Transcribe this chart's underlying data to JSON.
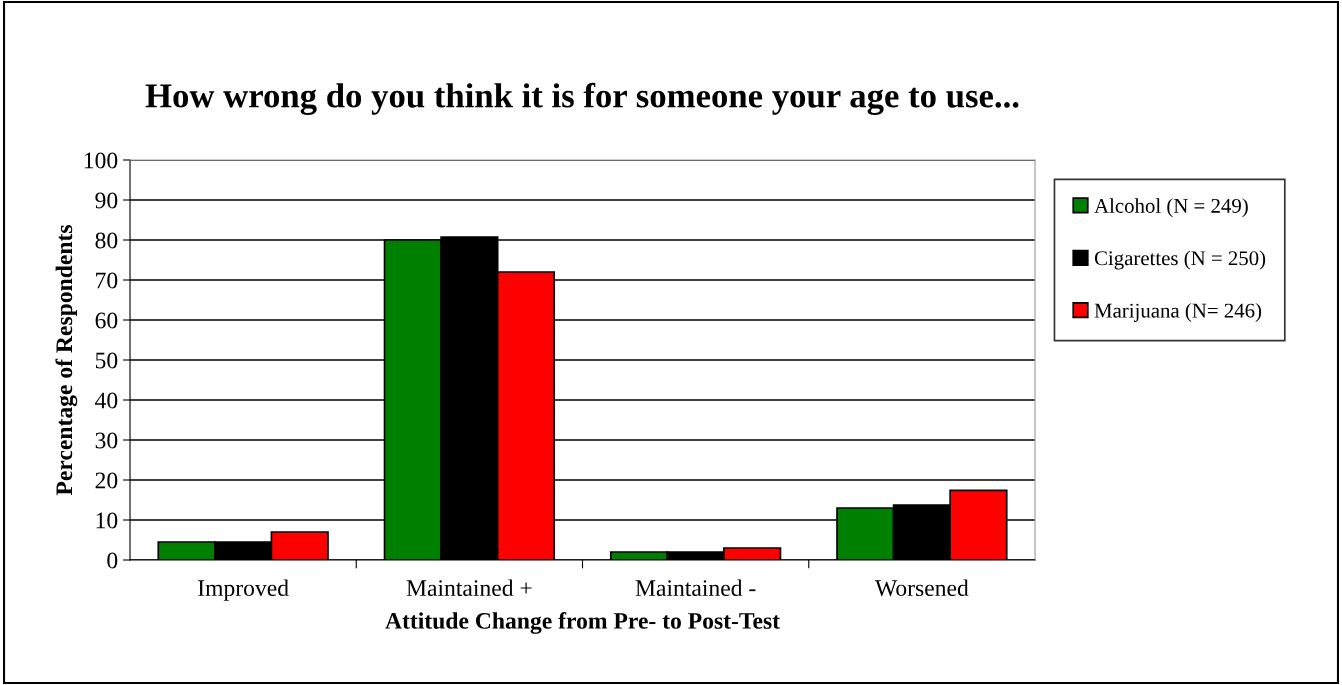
{
  "chart_data": {
    "type": "bar",
    "title": "How wrong do you think it is for someone your age to use...",
    "xlabel": "Attitude Change from Pre- to Post-Test",
    "ylabel": "Percentage of Respondents",
    "categories": [
      "Improved",
      "Maintained +",
      "Maintained -",
      "Worsened"
    ],
    "series": [
      {
        "name": "Alcohol (N = 249)",
        "color": "#008000",
        "values": [
          4.5,
          80,
          2,
          13
        ]
      },
      {
        "name": "Cigarettes (N = 250)",
        "color": "#000000",
        "values": [
          4.5,
          80.7,
          2,
          13.7
        ]
      },
      {
        "name": "Marijuana (N= 246)",
        "color": "#ff0000",
        "values": [
          7,
          72,
          3,
          17.4
        ]
      }
    ],
    "ylim": [
      0,
      100
    ],
    "yticks": [
      0,
      10,
      20,
      30,
      40,
      50,
      60,
      70,
      80,
      90,
      100
    ],
    "grid": "y",
    "legend": "right"
  }
}
